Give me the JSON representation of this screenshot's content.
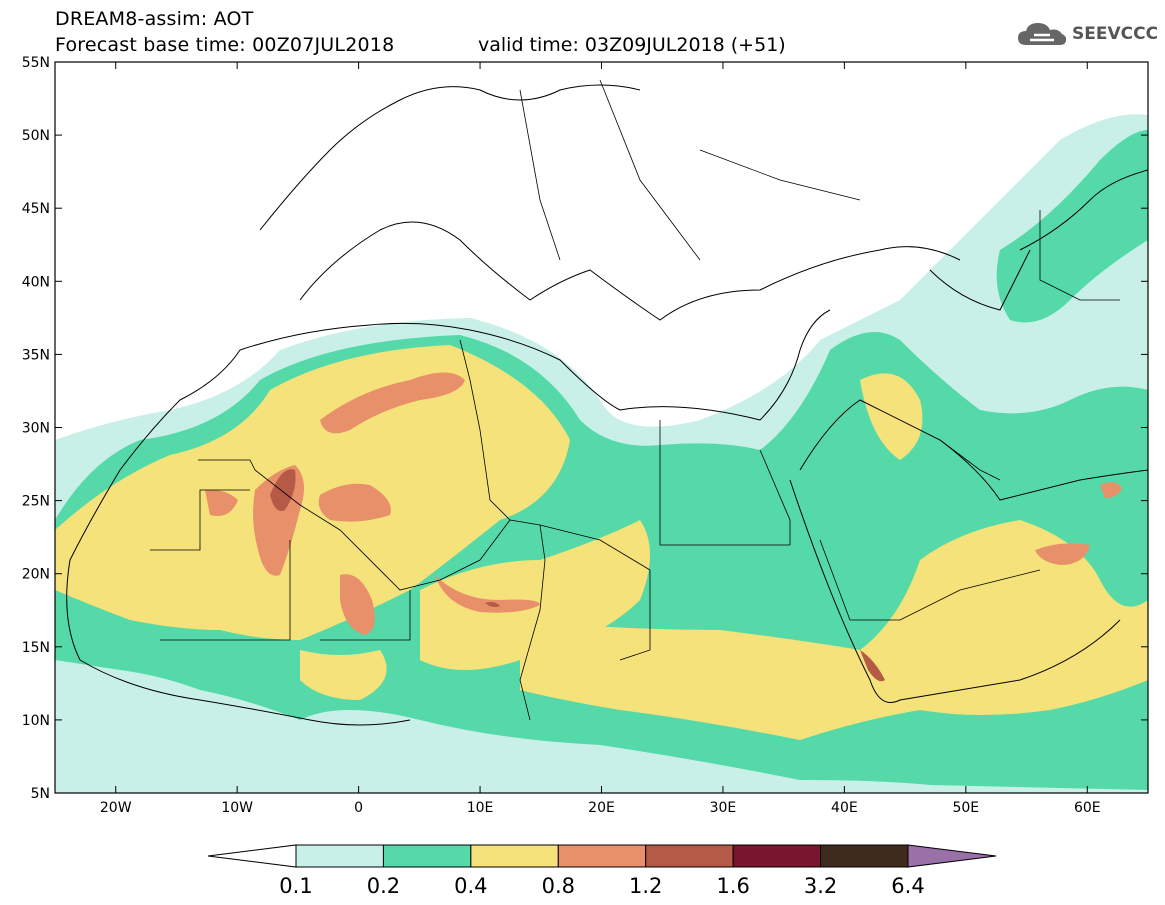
{
  "header": {
    "title": "DREAM8-assim: AOT",
    "base_time": "Forecast base time: 00Z07JUL2018",
    "valid_time": "valid time: 03Z09JUL2018 (+51)"
  },
  "logo": {
    "text": "SEEVCCC",
    "icon": "cloud-icon"
  },
  "map": {
    "lon_range": [
      -25,
      65
    ],
    "lat_range": [
      5,
      55
    ],
    "lon_ticks": [
      "20W",
      "10W",
      "0",
      "10E",
      "20E",
      "30E",
      "40E",
      "50E",
      "60E"
    ],
    "lat_ticks": [
      "5N",
      "10N",
      "15N",
      "20N",
      "25N",
      "30N",
      "35N",
      "40N",
      "45N",
      "50N",
      "55N"
    ],
    "variable": "AOT"
  },
  "colorbar": {
    "labels": [
      "0.1",
      "0.2",
      "0.4",
      "0.8",
      "1.2",
      "1.6",
      "3.2",
      "6.4"
    ],
    "colors": [
      "#c8f0e8",
      "#55d9a8",
      "#f5e27a",
      "#e8906a",
      "#b65a48",
      "#7a1530",
      "#3f2a1e"
    ],
    "under_color": "#ffffff",
    "over_color": "#9a70a8"
  }
}
